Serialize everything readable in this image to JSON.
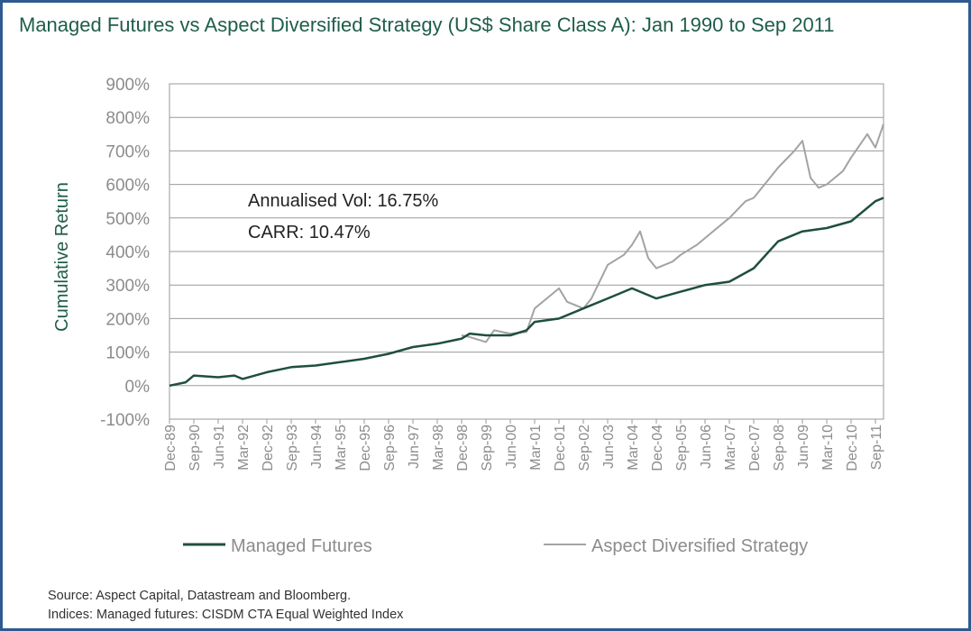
{
  "title": "Managed Futures vs Aspect Diversified Strategy (US$ Share Class A): Jan 1990 to Sep 2011",
  "footer": {
    "source": "Source: Aspect Capital, Datastream and Bloomberg.",
    "indices": "Indices: Managed futures: CISDM CTA Equal Weighted Index"
  },
  "chart_data": {
    "type": "line",
    "title": "Managed Futures vs Aspect Diversified Strategy (US$ Share Class A): Jan 1990 to Sep 2011",
    "xlabel": "",
    "ylabel": "Cumulative Return",
    "x_tick_labels": [
      "Dec-89",
      "Sep-90",
      "Jun-91",
      "Mar-92",
      "Dec-92",
      "Sep-93",
      "Jun-94",
      "Mar-95",
      "Dec-95",
      "Sep-96",
      "Jun-97",
      "Mar-98",
      "Dec-98",
      "Sep-99",
      "Jun-00",
      "Mar-01",
      "Dec-01",
      "Sep-02",
      "Jun-03",
      "Mar-04",
      "Dec-04",
      "Sep-05",
      "Jun-06",
      "Mar-07",
      "Dec-07",
      "Sep-08",
      "Jun-09",
      "Mar-10",
      "Dec-10",
      "Sep-11"
    ],
    "y_tick_labels": [
      "-100%",
      "0%",
      "100%",
      "200%",
      "300%",
      "400%",
      "500%",
      "600%",
      "700%",
      "800%",
      "900%"
    ],
    "ylim": [
      -100,
      900
    ],
    "y_unit": "%",
    "grid": "horizontal",
    "legend_position": "bottom",
    "annotations": [
      "Annualised Vol: 16.75%",
      "CARR: 10.47%"
    ],
    "colors": {
      "managed_futures": "#1f4f3d",
      "aspect": "#a3a3a3",
      "grid": "#9a9a9a",
      "title": "#1f5d4b",
      "border": "#2e5a8f"
    },
    "series": [
      {
        "name": "Managed Futures",
        "x": [
          "Dec-89",
          "Jun-90",
          "Sep-90",
          "Jun-91",
          "Dec-91",
          "Mar-92",
          "Dec-92",
          "Jun-93",
          "Sep-93",
          "Jun-94",
          "Mar-95",
          "Dec-95",
          "Sep-96",
          "Jun-97",
          "Mar-98",
          "Dec-98",
          "Mar-99",
          "Sep-99",
          "Jun-00",
          "Dec-00",
          "Mar-01",
          "Dec-01",
          "Sep-02",
          "Jun-03",
          "Mar-04",
          "Dec-04",
          "Sep-05",
          "Jun-06",
          "Mar-07",
          "Dec-07",
          "Sep-08",
          "Jun-09",
          "Mar-10",
          "Dec-10",
          "Sep-11",
          "Dec-11"
        ],
        "values": [
          0,
          10,
          30,
          25,
          30,
          20,
          40,
          50,
          55,
          60,
          70,
          80,
          95,
          115,
          125,
          140,
          155,
          150,
          150,
          165,
          190,
          200,
          230,
          260,
          290,
          260,
          280,
          300,
          310,
          350,
          430,
          460,
          470,
          490,
          550,
          560
        ]
      },
      {
        "name": "Aspect Diversified Strategy",
        "x": [
          "Dec-98",
          "Mar-99",
          "Sep-99",
          "Dec-99",
          "Jun-00",
          "Dec-00",
          "Mar-01",
          "Sep-01",
          "Dec-01",
          "Mar-02",
          "Sep-02",
          "Dec-02",
          "Jun-03",
          "Dec-03",
          "Mar-04",
          "Jun-04",
          "Sep-04",
          "Dec-04",
          "Jun-05",
          "Sep-05",
          "Mar-06",
          "Jun-06",
          "Dec-06",
          "Mar-07",
          "Sep-07",
          "Dec-07",
          "Jun-08",
          "Sep-08",
          "Mar-09",
          "Jun-09",
          "Sep-09",
          "Dec-09",
          "Mar-10",
          "Sep-10",
          "Dec-10",
          "Jun-11",
          "Sep-11",
          "Dec-11"
        ],
        "values": [
          150,
          145,
          130,
          165,
          155,
          160,
          230,
          270,
          290,
          250,
          230,
          260,
          360,
          390,
          420,
          460,
          380,
          350,
          370,
          390,
          420,
          440,
          480,
          500,
          550,
          560,
          620,
          650,
          700,
          730,
          620,
          590,
          600,
          640,
          680,
          750,
          710,
          780
        ]
      }
    ]
  }
}
